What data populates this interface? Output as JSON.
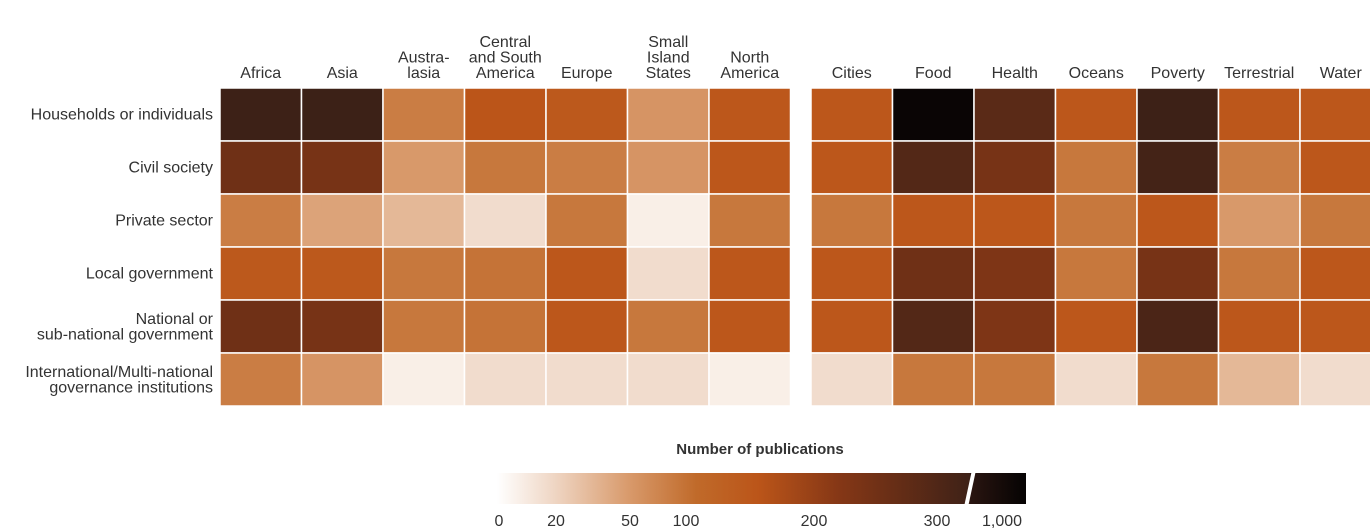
{
  "chart_data": {
    "type": "heatmap",
    "row_labels": [
      [
        "Households or individuals"
      ],
      [
        "Civil society"
      ],
      [
        "Private sector"
      ],
      [
        "Local government"
      ],
      [
        "National or",
        "sub-national government"
      ],
      [
        "International/Multi-national",
        "governance institutions"
      ]
    ],
    "panels": [
      {
        "columns": [
          [
            "Africa"
          ],
          [
            "Asia"
          ],
          [
            "Austra-",
            "lasia"
          ],
          [
            "Central",
            "and South",
            "America"
          ],
          [
            "Europe"
          ],
          [
            "Small",
            "Island",
            "States"
          ],
          [
            "North",
            "America"
          ]
        ],
        "values": [
          [
            300,
            310,
            80,
            150,
            140,
            55,
            145
          ],
          [
            230,
            220,
            50,
            85,
            80,
            55,
            145
          ],
          [
            80,
            45,
            35,
            17,
            85,
            8,
            85
          ],
          [
            140,
            140,
            85,
            90,
            145,
            17,
            145
          ],
          [
            230,
            220,
            85,
            90,
            145,
            85,
            145
          ],
          [
            80,
            55,
            8,
            17,
            17,
            17,
            8
          ]
        ]
      },
      {
        "columns": [
          [
            "Cities"
          ],
          [
            "Food"
          ],
          [
            "Health"
          ],
          [
            "Oceans"
          ],
          [
            "Poverty"
          ],
          [
            "Terrestrial"
          ],
          [
            "Water"
          ]
        ],
        "values": [
          [
            145,
            1000,
            260,
            145,
            300,
            145,
            145
          ],
          [
            145,
            270,
            220,
            85,
            290,
            80,
            145
          ],
          [
            85,
            145,
            145,
            85,
            145,
            50,
            85
          ],
          [
            145,
            230,
            210,
            85,
            220,
            85,
            145
          ],
          [
            145,
            270,
            210,
            145,
            280,
            145,
            145
          ],
          [
            17,
            85,
            85,
            17,
            85,
            35,
            17
          ]
        ]
      }
    ],
    "legend": {
      "title": "Number of publications",
      "ticks": [
        "0",
        "20",
        "50",
        "100",
        "200",
        "300",
        "1,000"
      ],
      "scale": "piecewise with break between 300 and 1,000",
      "colors": {
        "c0": "#ffffff",
        "c20": "#efd6c4",
        "c50": "#d8996a",
        "c100": "#c06a2a",
        "c150": "#bb5519",
        "c200": "#853716",
        "c300": "#3d2117",
        "c1000": "#0a0505"
      }
    }
  }
}
